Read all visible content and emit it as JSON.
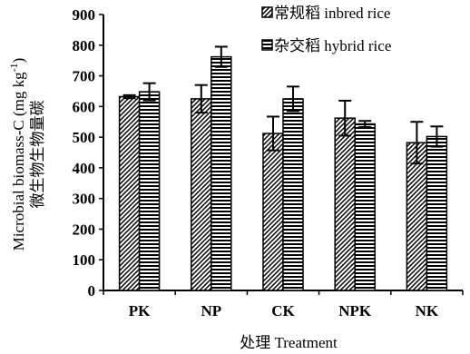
{
  "chart_data": {
    "type": "bar",
    "title": "",
    "xlabel": "处理 Treatment",
    "ylabel_lines": [
      "Microbial biomass-C (mg kg",
      "-1",
      ")",
      "微生物生物量碳"
    ],
    "ylim": [
      0,
      900
    ],
    "yticks": [
      0,
      100,
      200,
      300,
      400,
      500,
      600,
      700,
      800,
      900
    ],
    "categories": [
      "PK",
      "NP",
      "CK",
      "NPK",
      "NK"
    ],
    "series": [
      {
        "name": "常规稻 inbred rice",
        "pattern": "diagonal",
        "values": [
          632,
          625,
          512,
          562,
          482
        ],
        "errors": [
          5,
          45,
          55,
          57,
          68
        ]
      },
      {
        "name": "杂交稻 hybrid rice",
        "pattern": "horizontal",
        "values": [
          648,
          762,
          625,
          543,
          502
        ],
        "errors": [
          28,
          33,
          40,
          10,
          33
        ]
      }
    ],
    "legend_position": "top-right",
    "grid": false
  }
}
